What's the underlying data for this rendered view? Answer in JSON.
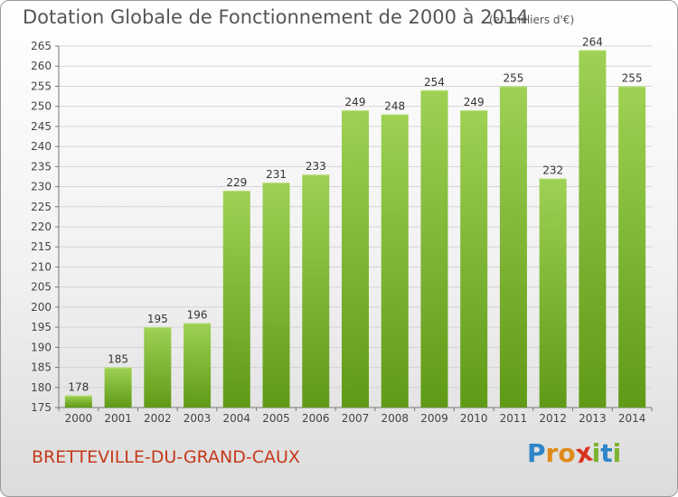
{
  "header": {
    "title": "Dotation Globale de Fonctionnement de 2000 à 2014",
    "unit": "(en milliers d'€)"
  },
  "footer": {
    "city": "BRETTEVILLE-DU-GRAND-CAUX",
    "logo_text": "Proxiti"
  },
  "colors": {
    "bar_top": "#9ed154",
    "bar_bottom": "#5f9a16",
    "city": "#c43a1a",
    "logo": [
      "#2e86c8",
      "#e08a1a",
      "#e08a1a",
      "#d8321e",
      "#7ab32e",
      "#2e86c8",
      "#7ab32e"
    ]
  },
  "chart_data": {
    "type": "bar",
    "title": "Dotation Globale de Fonctionnement de 2000 à 2014",
    "subtitle": "(en milliers d'€)",
    "categories": [
      "2000",
      "2001",
      "2002",
      "2003",
      "2004",
      "2005",
      "2006",
      "2007",
      "2008",
      "2009",
      "2010",
      "2011",
      "2012",
      "2013",
      "2014"
    ],
    "values": [
      178,
      185,
      195,
      196,
      229,
      231,
      233,
      249,
      248,
      254,
      249,
      255,
      232,
      264,
      255
    ],
    "ylim": [
      175,
      265
    ],
    "yticks": [
      175,
      180,
      185,
      190,
      195,
      200,
      205,
      210,
      215,
      220,
      225,
      230,
      235,
      240,
      245,
      250,
      255,
      260,
      265
    ],
    "grid": true,
    "data_labels": true
  }
}
